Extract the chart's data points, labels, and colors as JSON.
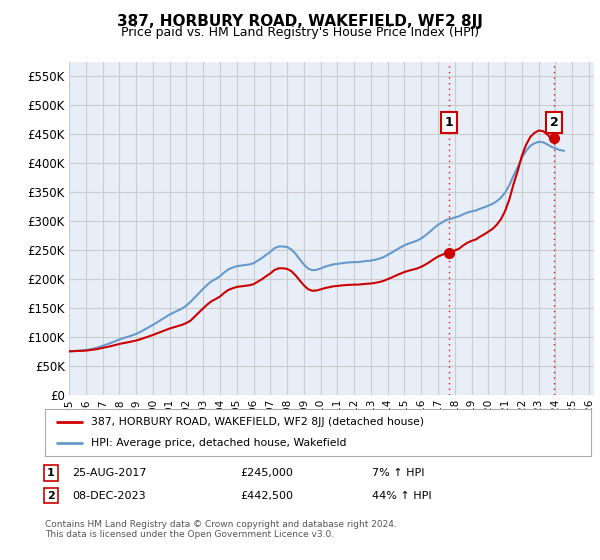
{
  "title": "387, HORBURY ROAD, WAKEFIELD, WF2 8JJ",
  "subtitle": "Price paid vs. HM Land Registry's House Price Index (HPI)",
  "ylim": [
    0,
    575000
  ],
  "yticks": [
    0,
    50000,
    100000,
    150000,
    200000,
    250000,
    300000,
    350000,
    400000,
    450000,
    500000,
    550000
  ],
  "ytick_labels": [
    "£0",
    "£50K",
    "£100K",
    "£150K",
    "£200K",
    "£250K",
    "£300K",
    "£350K",
    "£400K",
    "£450K",
    "£500K",
    "£550K"
  ],
  "xlim_start": 1995.0,
  "xlim_end": 2026.3,
  "xtick_years": [
    1995,
    1996,
    1997,
    1998,
    1999,
    2000,
    2001,
    2002,
    2003,
    2004,
    2005,
    2006,
    2007,
    2008,
    2009,
    2010,
    2011,
    2012,
    2013,
    2014,
    2015,
    2016,
    2017,
    2018,
    2019,
    2020,
    2021,
    2022,
    2023,
    2024,
    2025,
    2026
  ],
  "grid_color": "#cccccc",
  "background_color": "#ffffff",
  "plot_bg_color": "#e8eef8",
  "line_color_red": "#cc0000",
  "line_color_blue": "#6699cc",
  "annotation_box_color": "#cc0000",
  "legend_label_red": "387, HORBURY ROAD, WAKEFIELD, WF2 8JJ (detached house)",
  "legend_label_blue": "HPI: Average price, detached house, Wakefield",
  "annotation1_label": "1",
  "annotation1_date": "25-AUG-2017",
  "annotation1_price": "£245,000",
  "annotation1_hpi": "7% ↑ HPI",
  "annotation1_year": 2017.65,
  "annotation1_value": 245000,
  "annotation2_label": "2",
  "annotation2_date": "08-DEC-2023",
  "annotation2_price": "£442,500",
  "annotation2_hpi": "44% ↑ HPI",
  "annotation2_year": 2023.93,
  "annotation2_value": 442500,
  "footer_text": "Contains HM Land Registry data © Crown copyright and database right 2024.\nThis data is licensed under the Open Government Licence v3.0.",
  "hpi_years": [
    1995.0,
    1995.25,
    1995.5,
    1995.75,
    1996.0,
    1996.25,
    1996.5,
    1996.75,
    1997.0,
    1997.25,
    1997.5,
    1997.75,
    1998.0,
    1998.25,
    1998.5,
    1998.75,
    1999.0,
    1999.25,
    1999.5,
    1999.75,
    2000.0,
    2000.25,
    2000.5,
    2000.75,
    2001.0,
    2001.25,
    2001.5,
    2001.75,
    2002.0,
    2002.25,
    2002.5,
    2002.75,
    2003.0,
    2003.25,
    2003.5,
    2003.75,
    2004.0,
    2004.25,
    2004.5,
    2004.75,
    2005.0,
    2005.25,
    2005.5,
    2005.75,
    2006.0,
    2006.25,
    2006.5,
    2006.75,
    2007.0,
    2007.25,
    2007.5,
    2007.75,
    2008.0,
    2008.25,
    2008.5,
    2008.75,
    2009.0,
    2009.25,
    2009.5,
    2009.75,
    2010.0,
    2010.25,
    2010.5,
    2010.75,
    2011.0,
    2011.25,
    2011.5,
    2011.75,
    2012.0,
    2012.25,
    2012.5,
    2012.75,
    2013.0,
    2013.25,
    2013.5,
    2013.75,
    2014.0,
    2014.25,
    2014.5,
    2014.75,
    2015.0,
    2015.25,
    2015.5,
    2015.75,
    2016.0,
    2016.25,
    2016.5,
    2016.75,
    2017.0,
    2017.25,
    2017.5,
    2017.75,
    2018.0,
    2018.25,
    2018.5,
    2018.75,
    2019.0,
    2019.25,
    2019.5,
    2019.75,
    2020.0,
    2020.25,
    2020.5,
    2020.75,
    2021.0,
    2021.25,
    2021.5,
    2021.75,
    2022.0,
    2022.25,
    2022.5,
    2022.75,
    2023.0,
    2023.25,
    2023.5,
    2023.75,
    2024.0,
    2024.25,
    2024.5
  ],
  "hpi_values": [
    75000,
    75500,
    76000,
    76500,
    77000,
    78500,
    80000,
    82000,
    84500,
    87000,
    89500,
    92500,
    95500,
    98000,
    100000,
    102500,
    105000,
    108500,
    112500,
    116500,
    120500,
    125000,
    129500,
    134000,
    138500,
    142000,
    145500,
    149000,
    154000,
    160500,
    168000,
    175500,
    183000,
    190000,
    196000,
    200000,
    204500,
    211000,
    216500,
    219500,
    222000,
    223000,
    224000,
    225000,
    227000,
    231500,
    236000,
    241500,
    246500,
    253000,
    256000,
    256000,
    255000,
    251000,
    243500,
    234000,
    225000,
    218000,
    215000,
    215500,
    218000,
    221000,
    223000,
    225000,
    226000,
    227000,
    228000,
    228500,
    229000,
    229000,
    230000,
    231000,
    231500,
    233000,
    235000,
    237500,
    241500,
    245500,
    250000,
    254000,
    258000,
    261000,
    263500,
    266000,
    270000,
    275000,
    281000,
    287500,
    293500,
    297500,
    302000,
    303500,
    306000,
    308000,
    311500,
    314500,
    316500,
    318000,
    321000,
    323500,
    326500,
    329500,
    334000,
    340000,
    349000,
    361500,
    378000,
    392500,
    409000,
    421000,
    429500,
    434000,
    436500,
    436000,
    432500,
    428000,
    425500,
    422500,
    421000
  ],
  "sale_years": [
    1995.0,
    2002.25,
    2009.75,
    2017.65,
    2023.93
  ],
  "sale_values": [
    75000,
    128000,
    180000,
    245000,
    442500
  ]
}
